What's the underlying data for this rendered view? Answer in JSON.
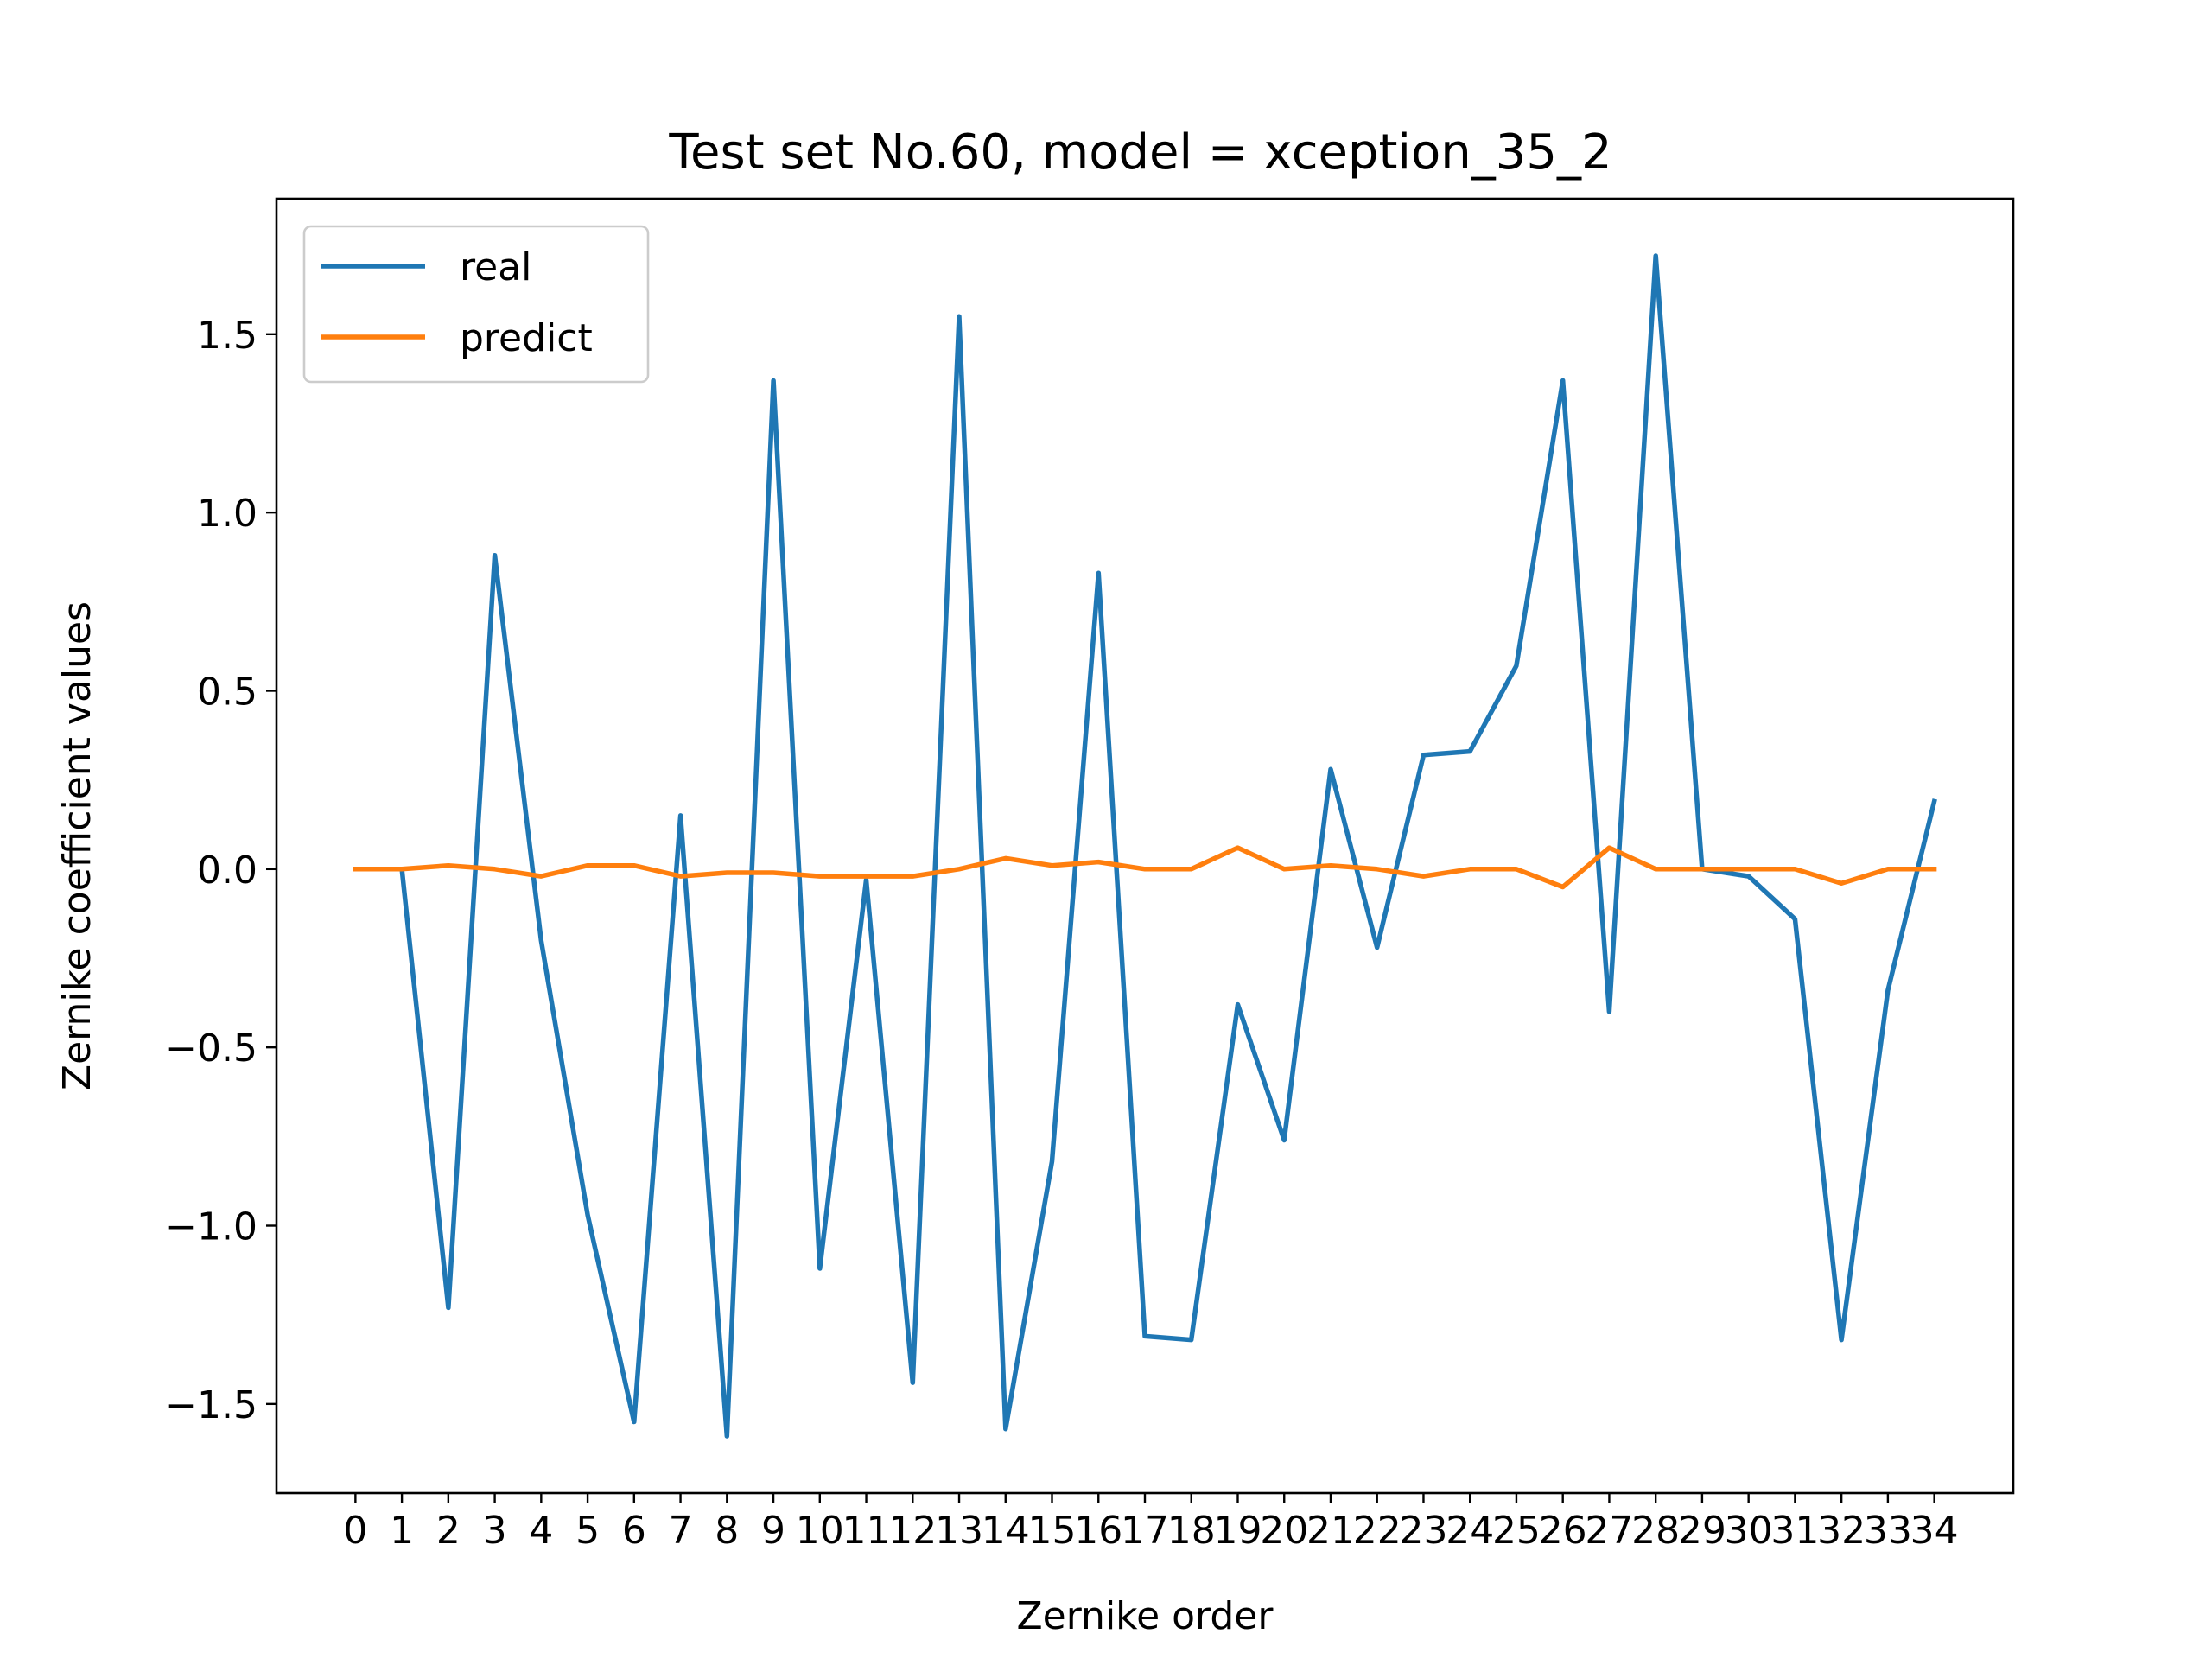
{
  "chart_data": {
    "type": "line",
    "title": "Test set No.60, model = xception_35_2",
    "xlabel": "Zernike order",
    "ylabel": "Zernike coefficient values",
    "x": [
      0,
      1,
      2,
      3,
      4,
      5,
      6,
      7,
      8,
      9,
      10,
      11,
      12,
      13,
      14,
      15,
      16,
      17,
      18,
      19,
      20,
      21,
      22,
      23,
      24,
      25,
      26,
      27,
      28,
      29,
      30,
      31,
      32,
      33,
      34
    ],
    "x_tick_labels": [
      "0",
      "1",
      "2",
      "3",
      "4",
      "5",
      "6",
      "7",
      "8",
      "9",
      "10",
      "11",
      "12",
      "13",
      "14",
      "15",
      "16",
      "17",
      "18",
      "19",
      "20",
      "21",
      "22",
      "23",
      "24",
      "25",
      "26",
      "27",
      "28",
      "29",
      "30",
      "31",
      "32",
      "33",
      "34"
    ],
    "y_ticks": [
      1.5,
      1.0,
      0.5,
      0.0,
      -0.5,
      -1.0,
      -1.5
    ],
    "y_tick_labels": [
      "1.5",
      "1.0",
      "0.5",
      "0.0",
      "−0.5",
      "−1.0",
      "−1.5"
    ],
    "xlim": [
      -1.7,
      35.7
    ],
    "ylim": [
      -1.75,
      1.88
    ],
    "grid": false,
    "legend_position": "upper-left",
    "series": [
      {
        "name": "real",
        "color": "#1f77b4",
        "values": [
          0.0,
          0.0,
          -1.23,
          0.88,
          -0.2,
          -0.97,
          -1.55,
          0.15,
          -1.59,
          1.37,
          -1.12,
          -0.03,
          -1.44,
          1.55,
          -1.57,
          -0.82,
          0.83,
          -1.31,
          -1.32,
          -0.38,
          -0.76,
          0.28,
          -0.22,
          0.32,
          0.33,
          0.57,
          1.37,
          -0.4,
          1.72,
          0.0,
          -0.02,
          -0.14,
          -1.32,
          -0.34,
          0.19
        ]
      },
      {
        "name": "predict",
        "color": "#ff7f0e",
        "values": [
          0.0,
          0.0,
          0.01,
          0.0,
          -0.02,
          0.01,
          0.01,
          -0.02,
          -0.01,
          -0.01,
          -0.02,
          -0.02,
          -0.02,
          0.0,
          0.03,
          0.01,
          0.02,
          0.0,
          0.0,
          0.06,
          0.0,
          0.01,
          0.0,
          -0.02,
          0.0,
          0.0,
          -0.05,
          0.06,
          0.0,
          0.0,
          0.0,
          0.0,
          -0.04,
          0.0,
          0.0
        ]
      }
    ]
  }
}
